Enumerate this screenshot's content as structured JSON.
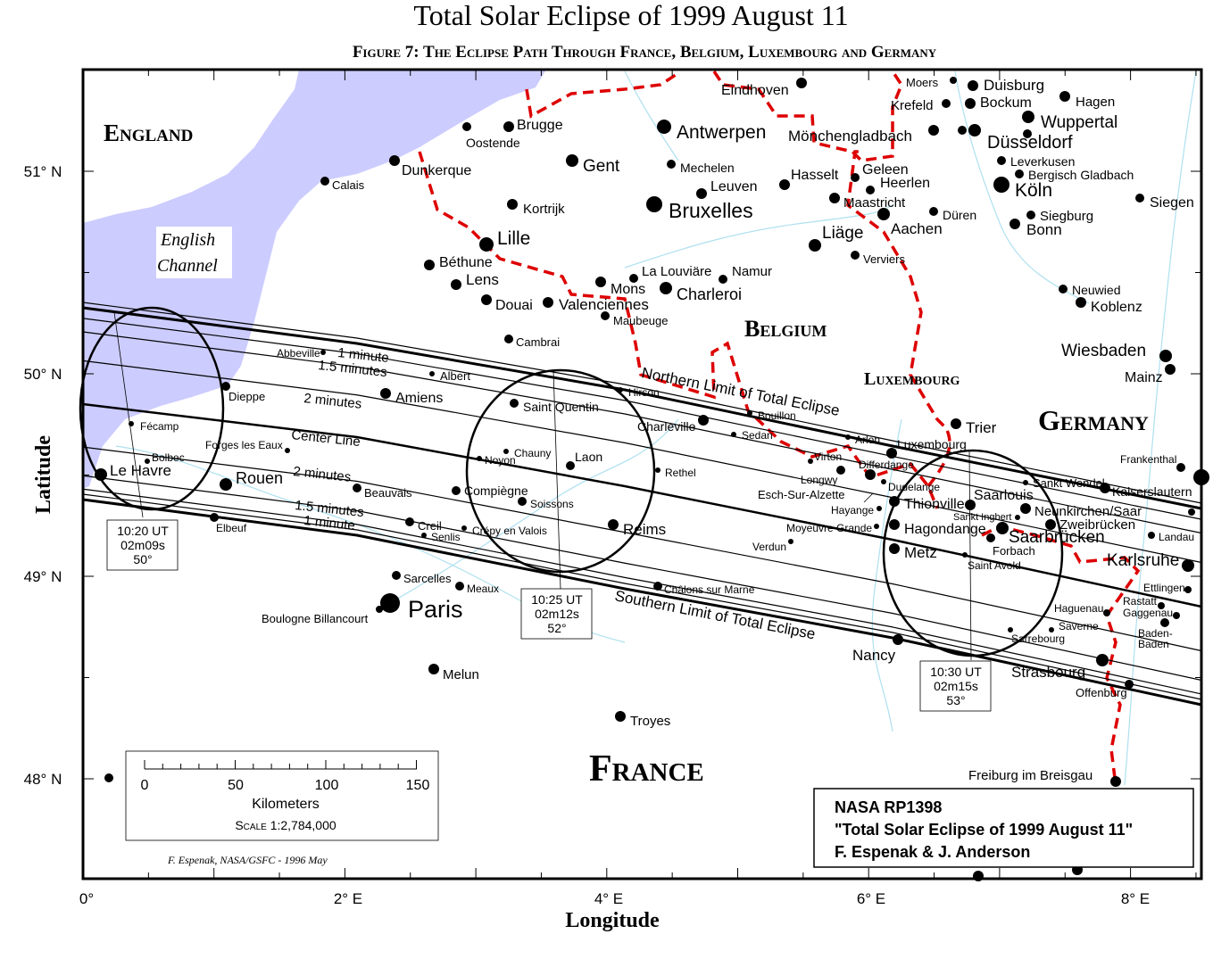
{
  "title": "Total Solar Eclipse of 1999 August 11",
  "subtitle": "Figure 7:  The Eclipse Path Through France, Belgium, Luxembourg and Germany",
  "colors": {
    "sea": "#ccccff",
    "border": "#dd0000",
    "river": "#aee0f0",
    "land": "#ffffff"
  },
  "axes": {
    "xlabel": "Longitude",
    "ylabel": "Latitude",
    "lon_ticks": [
      "0°",
      "2° E",
      "4° E",
      "6° E",
      "8° E"
    ],
    "lat_ticks": [
      "51° N",
      "50° N",
      "49° N",
      "48° N"
    ]
  },
  "regions": {
    "england": "England",
    "channel_1": "English",
    "channel_2": "Channel",
    "belgium": "Belgium",
    "luxembourg": "Luxembourg",
    "germany": "Germany",
    "france": "France"
  },
  "path_labels": {
    "n1": "1 minute",
    "n15": "1.5 minutes",
    "n2": "2 minutes",
    "center": "Center Line",
    "s2": "2 minutes",
    "s15": "1.5 minutes",
    "s1": "1 minute",
    "north": "Northern Limit of Total Eclipse",
    "south": "Southern Limit of Total Eclipse"
  },
  "time_boxes": [
    {
      "time": "10:20 UT",
      "duration": "02m09s",
      "altitude": "50°"
    },
    {
      "time": "10:25 UT",
      "duration": "02m12s",
      "altitude": "52°"
    },
    {
      "time": "10:30 UT",
      "duration": "02m15s",
      "altitude": "53°"
    }
  ],
  "scale": {
    "ticks": [
      "0",
      "50",
      "100",
      "150"
    ],
    "unit": "Kilometers",
    "ratio": "Scale 1:2,784,000"
  },
  "credit": {
    "line1": "NASA RP1398",
    "line2": "\"Total Solar Eclipse of 1999 August 11\"",
    "line3": "F. Espenak & J. Anderson"
  },
  "signature": "F. Espenak, NASA/GSFC - 1996 May",
  "cities": [
    "Eindhoven",
    "Moers",
    "Duisburg",
    "Krefeld",
    "Bockum",
    "Hagen",
    "Wuppertal",
    "Mönchengladbach",
    "Düsseldorf",
    "Leverkusen",
    "Bergisch Gladbach",
    "Köln",
    "Siegen",
    "Siegburg",
    "Bonn",
    "Hasselt",
    "Geleen",
    "Heerlen",
    "Maastricht",
    "Aachen",
    "Düren",
    "Liäge",
    "Verviers",
    "Antwerpen",
    "Brugge",
    "Oostende",
    "Gent",
    "Mechelen",
    "Leuven",
    "Bruxelles",
    "Dunkerque",
    "Calais",
    "Kortrijk",
    "Lille",
    "Béthune",
    "Lens",
    "Douai",
    "Valenciennes",
    "Mons",
    "La Louviäre",
    "Namur",
    "Charleroi",
    "Maubeuge",
    "Cambrai",
    "Neuwied",
    "Koblenz",
    "Wiesbaden",
    "Mainz",
    "Trier",
    "Abbeville",
    "Albert",
    "Dieppe",
    "Amiens",
    "Hirson",
    "Saint Quentin",
    "Bouillon",
    "Charleville",
    "Sedan",
    "Fécamp",
    "Forges les Eaux",
    "Bolbec",
    "Le Havre",
    "Chauny",
    "Noyon",
    "Laon",
    "Rethel",
    "Rouen",
    "Beauvais",
    "Compiègne",
    "Soissons",
    "Creil",
    "Senlis",
    "Crépy en Valois",
    "Reims",
    "Elbeuf",
    "Sarcelles",
    "Meaux",
    "Paris",
    "Boulogne Billancourt",
    "Melun",
    "Troyes",
    "Châlons sur Marne",
    "Verdun",
    "Arlon",
    "Luxembourg",
    "Virton",
    "Longwy",
    "Differdange",
    "Dudelange",
    "Esch-Sur-Alzette",
    "Hayange",
    "Thionville",
    "Saarlouis",
    "Sankt Ingbert",
    "Sankt Wendel",
    "Kaiserslautern",
    "Neunkirchen/Saar",
    "Zweibrücken",
    "Moyeuvre Grande",
    "Hagondange",
    "Saarbrücken",
    "Forbach",
    "Saint Avold",
    "Metz",
    "Landau",
    "Frankenthal",
    "Karlsruhe",
    "Ettlingen",
    "Rastatt",
    "Gaggenau",
    "Baden-",
    "Baden",
    "Haguenau",
    "Saverne",
    "Sarrebourg",
    "Nancy",
    "Strasbourg",
    "Offenburg",
    "Freiburg im Breisgau"
  ]
}
